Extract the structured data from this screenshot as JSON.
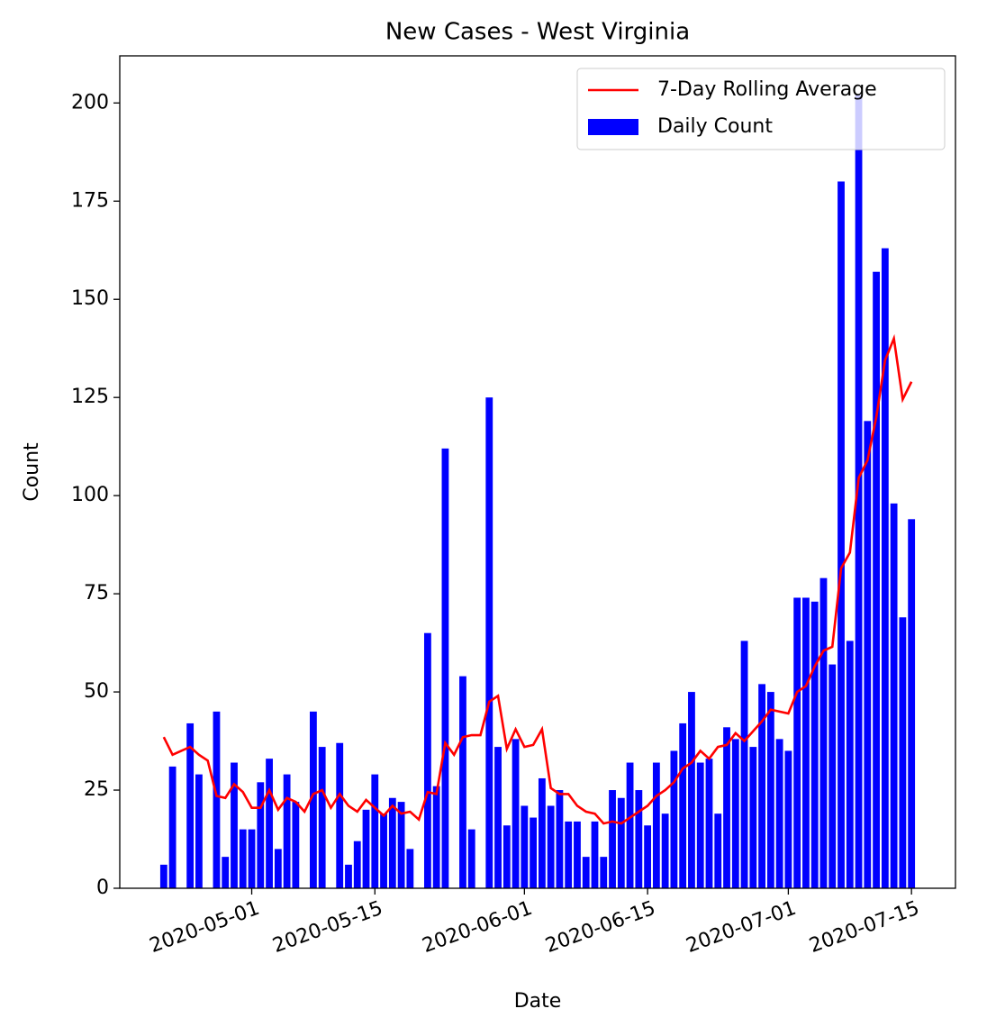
{
  "chart_data": {
    "type": "bar",
    "title": "New Cases - West Virginia",
    "x_label": "Date",
    "y_label": "Count",
    "x": [
      "2020-04-21",
      "2020-04-22",
      "2020-04-23",
      "2020-04-24",
      "2020-04-25",
      "2020-04-26",
      "2020-04-27",
      "2020-04-28",
      "2020-04-29",
      "2020-04-30",
      "2020-05-01",
      "2020-05-02",
      "2020-05-03",
      "2020-05-04",
      "2020-05-05",
      "2020-05-06",
      "2020-05-07",
      "2020-05-08",
      "2020-05-09",
      "2020-05-10",
      "2020-05-11",
      "2020-05-12",
      "2020-05-13",
      "2020-05-14",
      "2020-05-15",
      "2020-05-16",
      "2020-05-17",
      "2020-05-18",
      "2020-05-19",
      "2020-05-20",
      "2020-05-21",
      "2020-05-22",
      "2020-05-23",
      "2020-05-24",
      "2020-05-25",
      "2020-05-26",
      "2020-05-27",
      "2020-05-28",
      "2020-05-29",
      "2020-05-30",
      "2020-05-31",
      "2020-06-01",
      "2020-06-02",
      "2020-06-03",
      "2020-06-04",
      "2020-06-05",
      "2020-06-06",
      "2020-06-07",
      "2020-06-08",
      "2020-06-09",
      "2020-06-10",
      "2020-06-11",
      "2020-06-12",
      "2020-06-13",
      "2020-06-14",
      "2020-06-15",
      "2020-06-16",
      "2020-06-17",
      "2020-06-18",
      "2020-06-19",
      "2020-06-20",
      "2020-06-21",
      "2020-06-22",
      "2020-06-23",
      "2020-06-24",
      "2020-06-25",
      "2020-06-26",
      "2020-06-27",
      "2020-06-28",
      "2020-06-29",
      "2020-06-30",
      "2020-07-01",
      "2020-07-02",
      "2020-07-03",
      "2020-07-04",
      "2020-07-05",
      "2020-07-06",
      "2020-07-07",
      "2020-07-08",
      "2020-07-09",
      "2020-07-10",
      "2020-07-11",
      "2020-07-12",
      "2020-07-13",
      "2020-07-14",
      "2020-07-15"
    ],
    "series": [
      {
        "name": "7-Day Rolling Average",
        "kind": "line",
        "color": "#ff0000",
        "values": [
          38.5,
          34,
          35,
          36,
          34,
          32.5,
          23.5,
          23,
          26.5,
          24.5,
          20.5,
          20.5,
          25,
          20,
          23,
          22,
          19.5,
          24,
          25,
          20.5,
          24,
          21,
          19.5,
          22.5,
          20.5,
          18.5,
          21,
          19,
          19.5,
          17.5,
          24.5,
          24,
          37,
          34,
          38.5,
          39,
          39,
          47.5,
          49,
          35.5,
          40.5,
          36,
          36.5,
          40.5,
          25.5,
          24,
          24,
          21,
          19.5,
          19,
          16.5,
          17,
          16.5,
          18,
          19.5,
          21,
          23.5,
          25,
          27,
          30.5,
          32,
          35,
          33,
          36,
          36.5,
          39.5,
          37.5,
          40,
          42.5,
          45.5,
          45,
          44.5,
          50,
          51.5,
          56.5,
          60.5,
          61.5,
          81.5,
          85.5,
          104.5,
          109,
          120,
          134.5,
          140,
          124.5,
          129
        ]
      },
      {
        "name": "Daily Count",
        "kind": "bar",
        "color": "#0000ff",
        "values": [
          6,
          31,
          0,
          42,
          29,
          0,
          45,
          8,
          32,
          15,
          15,
          27,
          33,
          10,
          29,
          22,
          0,
          45,
          36,
          0,
          37,
          6,
          12,
          20,
          29,
          19,
          23,
          22,
          10,
          0,
          65,
          26,
          112,
          0,
          54,
          15,
          0,
          125,
          36,
          16,
          38,
          21,
          18,
          28,
          21,
          25,
          17,
          17,
          8,
          17,
          8,
          25,
          23,
          32,
          25,
          16,
          32,
          19,
          35,
          42,
          50,
          32,
          33,
          19,
          41,
          38,
          63,
          36,
          52,
          50,
          38,
          35,
          74,
          74,
          73,
          79,
          57,
          180,
          63,
          202,
          119,
          157,
          163,
          98,
          69,
          94
        ]
      }
    ],
    "xlim": [
      "2020-04-16",
      "2020-07-20"
    ],
    "xticks": [
      "2020-05-01",
      "2020-05-15",
      "2020-06-01",
      "2020-06-15",
      "2020-07-01",
      "2020-07-15"
    ],
    "ylim": [
      0,
      212
    ],
    "yticks": [
      0,
      25,
      50,
      75,
      100,
      125,
      150,
      175,
      200
    ],
    "grid": false,
    "legend": "upper right"
  }
}
